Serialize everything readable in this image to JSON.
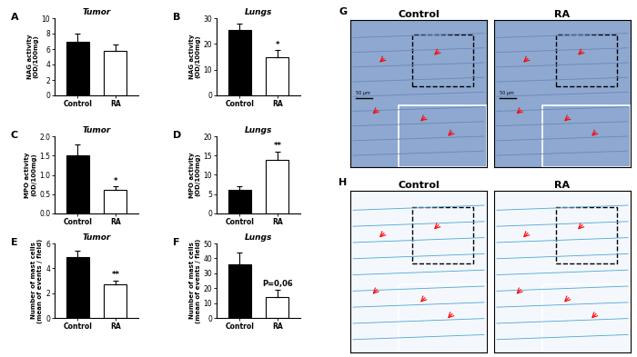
{
  "chart_data": [
    {
      "type": "bar",
      "panel": "A",
      "title": "Tumor",
      "y_label": "NAG activity\n(OD/100mg)",
      "categories": [
        "Control",
        "RA"
      ],
      "values": [
        7.0,
        5.8
      ],
      "errors": [
        1.0,
        0.8
      ],
      "colors": [
        "#000000",
        "#ffffff"
      ],
      "ylim": [
        0,
        10
      ],
      "yticks": [
        0,
        2,
        4,
        6,
        8,
        10
      ]
    },
    {
      "type": "bar",
      "panel": "B",
      "title": "Lungs",
      "y_label": "NAG activity\n(OD/100mg)",
      "categories": [
        "Control",
        "RA"
      ],
      "values": [
        25.5,
        15
      ],
      "errors": [
        2.5,
        2.5
      ],
      "colors": [
        "#000000",
        "#ffffff"
      ],
      "ylim": [
        0,
        30
      ],
      "yticks": [
        0,
        10,
        20,
        30
      ],
      "annotations": [
        {
          "category": "RA",
          "text": "*"
        }
      ]
    },
    {
      "type": "bar",
      "panel": "C",
      "title": "Tumor",
      "y_label": "MPO activity\n(OD/100mg)",
      "categories": [
        "Control",
        "RA"
      ],
      "values": [
        1.5,
        0.6
      ],
      "errors": [
        0.3,
        0.1
      ],
      "colors": [
        "#000000",
        "#ffffff"
      ],
      "ylim": [
        0,
        2
      ],
      "yticks": [
        {
          "value": 0,
          "label": "0.0"
        },
        {
          "value": 0.5,
          "label": "0.5"
        },
        {
          "value": 1,
          "label": "1.0"
        },
        {
          "value": 1.5,
          "label": "1.5"
        },
        {
          "value": 2,
          "label": "2.0"
        }
      ],
      "annotations": [
        {
          "category": "RA",
          "text": "*"
        }
      ]
    },
    {
      "type": "bar",
      "panel": "D",
      "title": "Lungs",
      "y_label": "MPO activity\n(OD/100mg)",
      "categories": [
        "Control",
        "RA"
      ],
      "values": [
        6,
        14
      ],
      "errors": [
        1,
        2
      ],
      "colors": [
        "#000000",
        "#ffffff"
      ],
      "ylim": [
        0,
        20
      ],
      "yticks": [
        0,
        5,
        10,
        15,
        20
      ],
      "annotations": [
        {
          "category": "RA",
          "text": "**"
        }
      ]
    },
    {
      "type": "bar",
      "panel": "E",
      "title": "Tumor",
      "y_label": "Number of mast cells\n(mean of events / field)",
      "categories": [
        "Control",
        "RA"
      ],
      "values": [
        4.9,
        2.7
      ],
      "errors": [
        0.5,
        0.3
      ],
      "colors": [
        "#000000",
        "#ffffff"
      ],
      "ylim": [
        0,
        6
      ],
      "yticks": [
        0,
        2,
        4,
        6
      ],
      "annotations": [
        {
          "category": "RA",
          "text": "**"
        }
      ]
    },
    {
      "type": "bar",
      "panel": "F",
      "title": "Lungs",
      "y_label": "Number of mast cells\n(mean of events / field)",
      "categories": [
        "Control",
        "RA"
      ],
      "values": [
        36,
        14
      ],
      "errors": [
        8,
        5
      ],
      "colors": [
        "#000000",
        "#ffffff"
      ],
      "ylim": [
        0,
        50
      ],
      "yticks": [
        0,
        10,
        20,
        30,
        40,
        50
      ],
      "annotations": [
        {
          "category": "RA",
          "text": "P=0,06"
        }
      ]
    }
  ],
  "image_panels": [
    {
      "panel": "G",
      "titles": [
        "Control",
        "RA"
      ],
      "scale_bar": "50 µm"
    },
    {
      "panel": "H",
      "titles": [
        "Control",
        "RA"
      ]
    }
  ]
}
